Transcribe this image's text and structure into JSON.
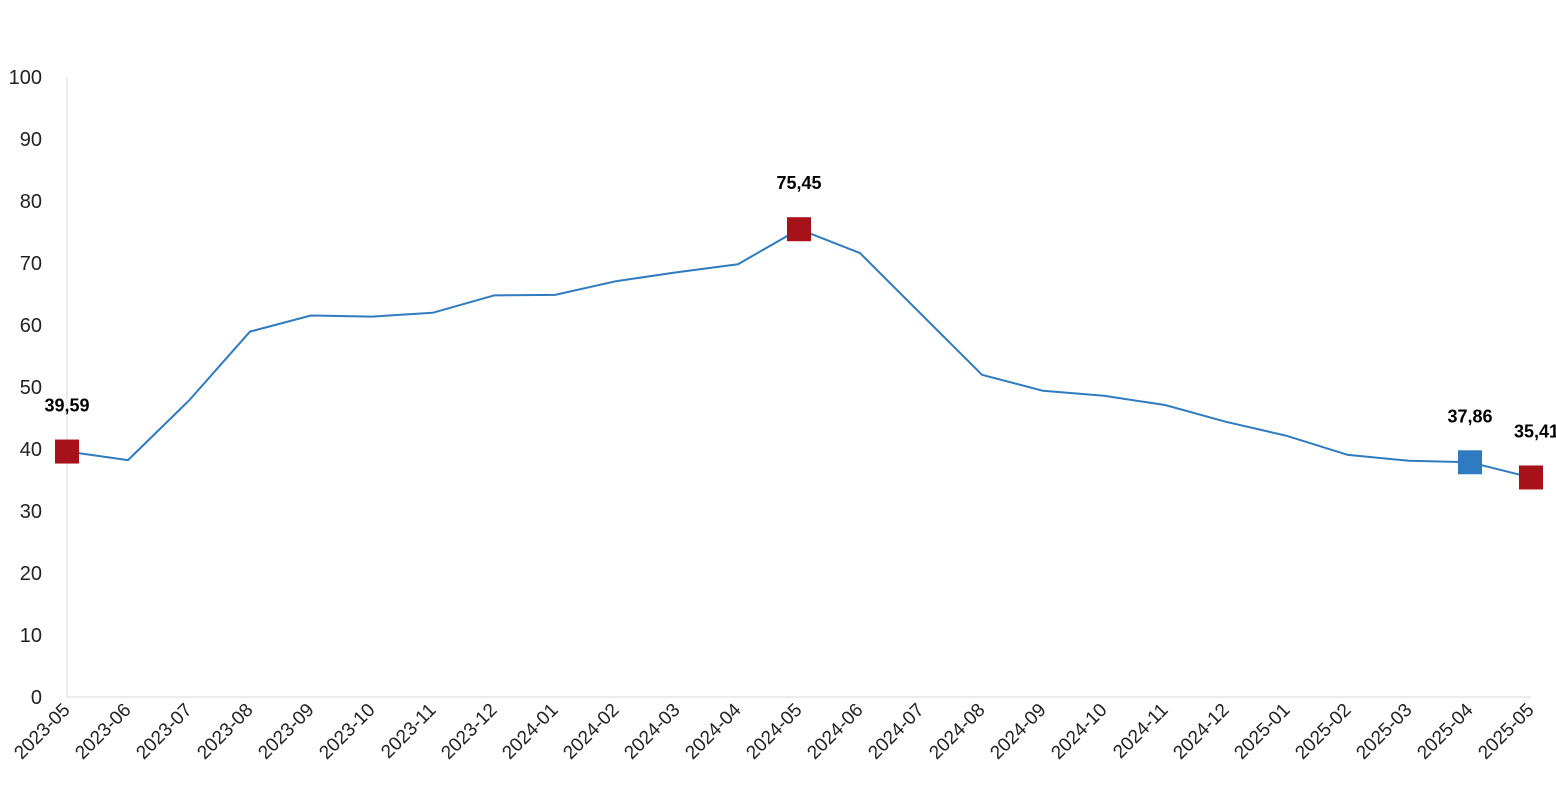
{
  "chart_data": {
    "type": "line",
    "title": "",
    "xlabel": "",
    "ylabel": "",
    "ylim": [
      0,
      100
    ],
    "yticks": [
      0,
      10,
      20,
      30,
      40,
      50,
      60,
      70,
      80,
      90,
      100
    ],
    "grid": false,
    "legend": "none",
    "categories": [
      "2023-05",
      "2023-06",
      "2023-07",
      "2023-08",
      "2023-09",
      "2023-10",
      "2023-11",
      "2023-12",
      "2024-01",
      "2024-02",
      "2024-03",
      "2024-04",
      "2024-05",
      "2024-06",
      "2024-07",
      "2024-08",
      "2024-09",
      "2024-10",
      "2024-11",
      "2024-12",
      "2025-01",
      "2025-02",
      "2025-03",
      "2025-04",
      "2025-05"
    ],
    "series": [
      {
        "values": [
          39.59,
          38.21,
          47.83,
          58.94,
          61.53,
          61.36,
          61.98,
          64.77,
          64.86,
          67.07,
          68.5,
          69.8,
          75.45,
          71.6,
          61.78,
          51.97,
          49.38,
          48.58,
          47.09,
          44.38,
          42.12,
          39.05,
          38.1,
          37.86,
          35.41
        ],
        "color": "#2E7BBF"
      }
    ],
    "highlighted_points": [
      {
        "index": 0,
        "label": "39,59",
        "color": "#A6121A"
      },
      {
        "index": 12,
        "label": "75,45",
        "color": "#A6121A"
      },
      {
        "index": 23,
        "label": "37,86",
        "color": "#2E7BBF"
      },
      {
        "index": 24,
        "label": "35,41",
        "color": "#A6121A"
      }
    ]
  }
}
